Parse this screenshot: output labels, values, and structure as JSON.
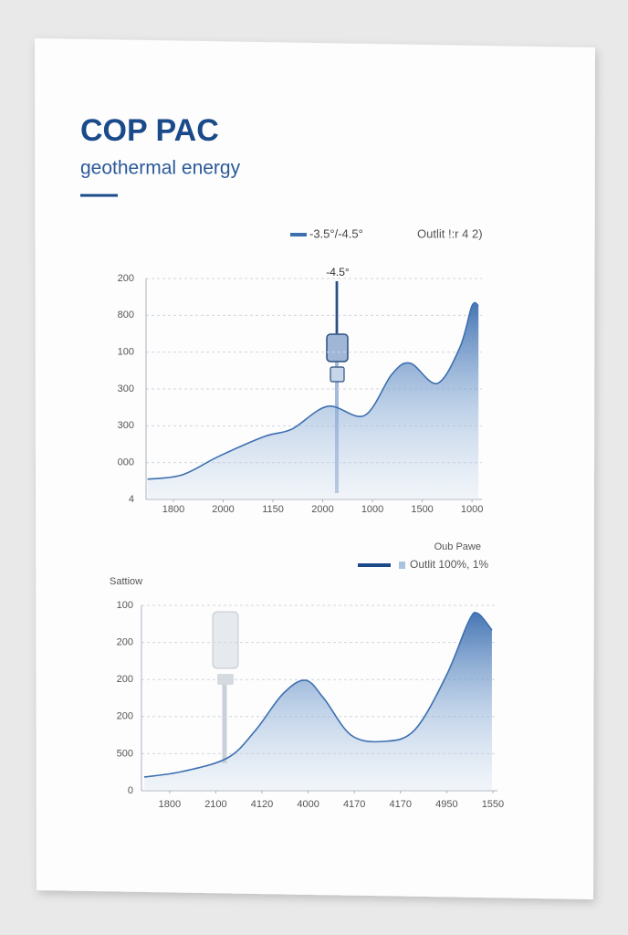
{
  "title": "COP PAC",
  "subtitle": "geothermal energy",
  "chart_data": [
    {
      "type": "area",
      "legend_note": "Outlit !:r 4 2)",
      "annotation": "-4.5°",
      "x": [
        -0.52,
        0.18,
        0.91,
        1.83,
        2.38,
        3.1,
        3.84,
        4.39,
        4.76,
        5.3,
        5.76,
        6.0,
        6.13
      ],
      "series": [
        {
          "name": "-3.5°/-4.5°",
          "color": "#3d6fb0",
          "values": [
            0.55,
            0.67,
            1.17,
            1.71,
            1.91,
            2.53,
            2.28,
            3.4,
            3.7,
            3.15,
            4.14,
            5.26,
            5.26
          ]
        }
      ],
      "xlim": [
        -0.55,
        6.2
      ],
      "xticks": [
        {
          "value": 0,
          "label": "1800"
        },
        {
          "value": 1,
          "label": "2000"
        },
        {
          "value": 2,
          "label": "1150"
        },
        {
          "value": 3,
          "label": "2000"
        },
        {
          "value": 4,
          "label": "1000"
        },
        {
          "value": 5,
          "label": "1500"
        },
        {
          "value": 6,
          "label": "1000"
        }
      ],
      "ylim": [
        0,
        6
      ],
      "yticks": [
        {
          "value": 0,
          "label": "4"
        },
        {
          "value": 1,
          "label": "000"
        },
        {
          "value": 2,
          "label": "300"
        },
        {
          "value": 3,
          "label": "300"
        },
        {
          "value": 4,
          "label": "100"
        },
        {
          "value": 5,
          "label": "800"
        },
        {
          "value": 6,
          "label": "200"
        }
      ],
      "grid": true
    },
    {
      "type": "area",
      "legend_title": "Oub Pawe",
      "y_label": "Sattiow",
      "x": [
        -0.55,
        0.28,
        1.26,
        1.86,
        2.45,
        2.94,
        3.34,
        3.93,
        4.62,
        5.3,
        5.99,
        6.48,
        6.68,
        6.98
      ],
      "series": [
        {
          "name": "Outlit 100%, 1%",
          "color": "#3d6fb0",
          "values": [
            0.37,
            0.52,
            0.89,
            1.63,
            2.61,
            2.98,
            2.49,
            1.5,
            1.33,
            1.63,
            3.1,
            4.58,
            4.78,
            4.33
          ]
        }
      ],
      "xlim": [
        -0.61,
        7.1
      ],
      "xticks": [
        {
          "value": 0,
          "label": "1800"
        },
        {
          "value": 1,
          "label": "2100"
        },
        {
          "value": 2,
          "label": "4120"
        },
        {
          "value": 3,
          "label": "4000"
        },
        {
          "value": 4,
          "label": "4170"
        },
        {
          "value": 5,
          "label": "4170"
        },
        {
          "value": 6,
          "label": "4950"
        },
        {
          "value": 7,
          "label": "1550"
        }
      ],
      "ylim": [
        0,
        5
      ],
      "yticks": [
        {
          "value": 0,
          "label": "0"
        },
        {
          "value": 1,
          "label": "500"
        },
        {
          "value": 2,
          "label": "200"
        },
        {
          "value": 3,
          "label": "200"
        },
        {
          "value": 4,
          "label": "200"
        },
        {
          "value": 5,
          "label": "100"
        }
      ],
      "grid": true
    }
  ]
}
